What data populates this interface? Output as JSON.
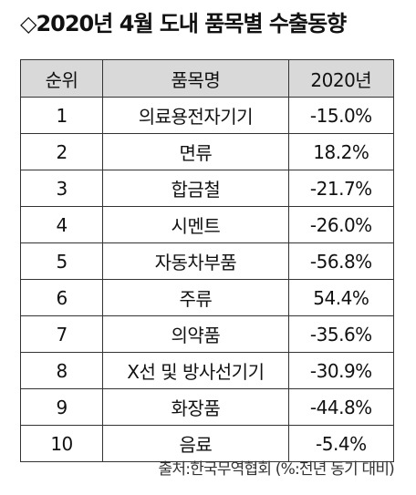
{
  "title": "◇2020년 4월 도내 품목별 수출동향",
  "table": {
    "headers": [
      "순위",
      "품목명",
      "2020년"
    ],
    "rows": [
      {
        "rank": "1",
        "item": "의료용전자기기",
        "value": "-15.0%"
      },
      {
        "rank": "2",
        "item": "면류",
        "value": "18.2%"
      },
      {
        "rank": "3",
        "item": "합금철",
        "value": "-21.7%"
      },
      {
        "rank": "4",
        "item": "시멘트",
        "value": "-26.0%"
      },
      {
        "rank": "5",
        "item": "자동차부품",
        "value": "-56.8%"
      },
      {
        "rank": "6",
        "item": "주류",
        "value": "54.4%"
      },
      {
        "rank": "7",
        "item": "의약품",
        "value": "-35.6%"
      },
      {
        "rank": "8",
        "item": "X선 및 방사선기기",
        "value": "-30.9%"
      },
      {
        "rank": "9",
        "item": "화장품",
        "value": "-44.8%"
      },
      {
        "rank": "10",
        "item": "음료",
        "value": "-5.4%"
      }
    ]
  },
  "source": "출처:한국무역협회 (%:전년 동기 대비)"
}
